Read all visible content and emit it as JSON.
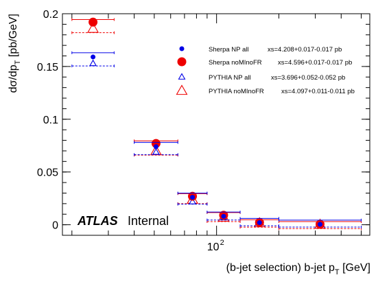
{
  "chart_data": {
    "type": "scatter",
    "title": "",
    "xlabel": "(b-jet selection) b-jet p",
    "xlabel_sub": "T",
    "xlabel_unit": " [GeV]",
    "ylabel": "dσ/dp",
    "ylabel_sub": "T",
    "ylabel_unit": " [pb/GeV]",
    "xscale": "log",
    "xlim": [
      18,
      550
    ],
    "ylim": [
      -0.01,
      0.2
    ],
    "y_ticks": [
      {
        "value": 0,
        "label": "0"
      },
      {
        "value": 0.05,
        "label": "0.05"
      },
      {
        "value": 0.1,
        "label": "0.1"
      },
      {
        "value": 0.15,
        "label": "0.15"
      },
      {
        "value": 0.2,
        "label": "0.2"
      }
    ],
    "x_ticks": [
      {
        "value": 100,
        "label": "10",
        "sup": "2"
      }
    ],
    "bins": [
      [
        20,
        32
      ],
      [
        40,
        65
      ],
      [
        65,
        90
      ],
      [
        90,
        130
      ],
      [
        130,
        200
      ],
      [
        200,
        500
      ]
    ],
    "legend_position": "top-right",
    "series": [
      {
        "name": "Sherpa NP all",
        "xs_text": "xs=4.208+0.017-0.017 pb",
        "color": "#0000e6",
        "marker": "dot",
        "line": "solid",
        "offset": 0.004,
        "values": [
          0.159,
          0.074,
          0.026,
          0.008,
          0.002,
          0.0004
        ]
      },
      {
        "name": "Sherpa noMInoFR",
        "xs_text": "xs=4.596+0.017-0.017 pb",
        "color": "#ee0000",
        "marker": "bigdot",
        "line": "solid",
        "offset": 0.0025,
        "values": [
          0.192,
          0.077,
          0.027,
          0.009,
          0.0022,
          0.0005
        ]
      },
      {
        "name": "PYTHIA NP all",
        "xs_text": "xs=3.696+0.052-0.052 pb",
        "color": "#0000e6",
        "marker": "triangle",
        "line": "dashed",
        "offset": -0.0025,
        "values": [
          0.153,
          0.069,
          0.022,
          0.007,
          0.0015,
          0.0003
        ]
      },
      {
        "name": "PYTHIA noMInoFR",
        "xs_text": "xs=4.097+0.011-0.011 pb",
        "color": "#ee0000",
        "marker": "bigtriangle",
        "line": "dashed",
        "offset": -0.004,
        "values": [
          0.186,
          0.07,
          0.024,
          0.007,
          0.0017,
          0.0003
        ]
      }
    ]
  },
  "label": {
    "atlas": "ATLAS",
    "status": "Internal"
  }
}
